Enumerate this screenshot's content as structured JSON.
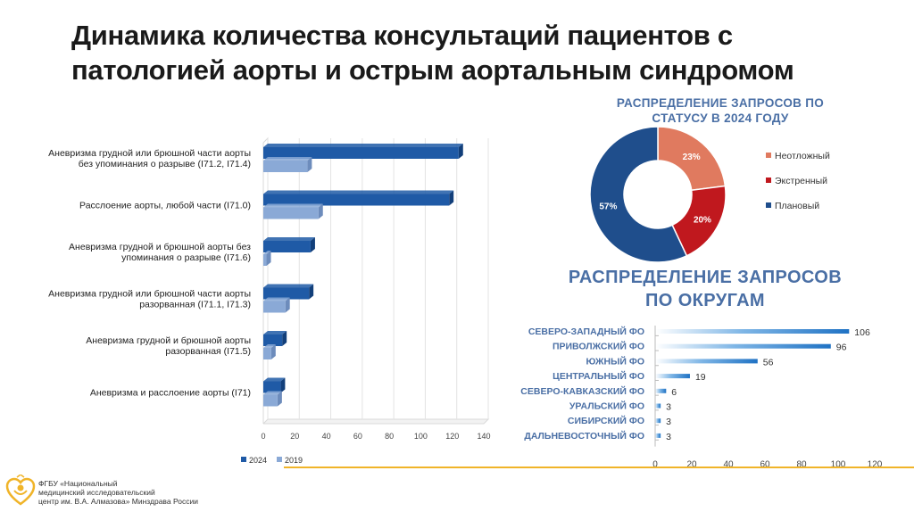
{
  "title": "Динамика количества консультаций пациентов с патологией аорты и острым аортальным синдромом",
  "org_text": [
    "ФГБУ «Национальный",
    "медицинский исследовательский",
    "центр им. В.А. Алмазова» Минздрава России"
  ],
  "chart_data": [
    {
      "type": "bar",
      "orientation": "horizontal",
      "categories": [
        [
          "Аневризма грудной или брюшной части аорты",
          "без упоминания о разрыве (I71.2, I71.4)"
        ],
        [
          "Расслоение аорты, любой части (I71.0)"
        ],
        [
          "Аневризма грудной и брюшной аорты без",
          "упоминания о разрыве (I71.6)"
        ],
        [
          "Аневризма грудной или брюшной части аорты",
          "разорванная (I71.1, I71.3)"
        ],
        [
          "Аневризма грудной и брюшной аорты",
          "разорванная (I71.5)"
        ],
        [
          "Аневризма и расслоение аорты (I71)"
        ]
      ],
      "series": [
        {
          "name": "2024",
          "values": [
            124,
            118,
            30,
            29,
            12,
            11
          ],
          "color": "#1f5aa6"
        },
        {
          "name": "2019",
          "values": [
            28,
            35,
            2,
            14,
            5,
            9
          ],
          "color": "#8aa9d6"
        }
      ],
      "xlim": [
        0,
        140
      ],
      "xticks": [
        "0",
        "20",
        "40",
        "60",
        "80",
        "100",
        "120",
        "140"
      ]
    },
    {
      "type": "pie",
      "title": "РАСПРЕДЕЛЕНИЕ ЗАПРОСОВ ПО СТАТУСУ В 2024 ГОДУ",
      "labels": [
        "Неотложный",
        "Экстренный",
        "Плановый"
      ],
      "values": [
        23,
        20,
        57
      ],
      "value_labels": [
        "23%",
        "20%",
        "57%"
      ],
      "colors": [
        "#e07a5f",
        "#c0181e",
        "#1f4e8c"
      ]
    },
    {
      "type": "bar",
      "orientation": "horizontal",
      "title": "РАСПРЕДЕЛЕНИЕ ЗАПРОСОВ ПО ОКРУГАМ",
      "categories": [
        "СЕВЕРО-ЗАПАДНЫЙ ФО",
        "ПРИВОЛЖСКИЙ ФО",
        "ЮЖНЫЙ ФО",
        "ЦЕНТРАЛЬНЫЙ ФО",
        "СЕВЕРО-КАВКАЗСКИЙ ФО",
        "УРАЛЬСКИЙ ФО",
        "СИБИРСКИЙ ФО",
        "ДАЛЬНЕВОСТОЧНЫЙ ФО"
      ],
      "values": [
        106,
        96,
        56,
        19,
        6,
        3,
        3,
        3
      ],
      "value_labels": [
        "106",
        "96",
        "56",
        "19",
        "6",
        "3",
        "3",
        "3"
      ],
      "xlim": [
        0,
        120
      ],
      "xticks": [
        "0",
        "20",
        "40",
        "60",
        "80",
        "100",
        "120"
      ]
    }
  ]
}
